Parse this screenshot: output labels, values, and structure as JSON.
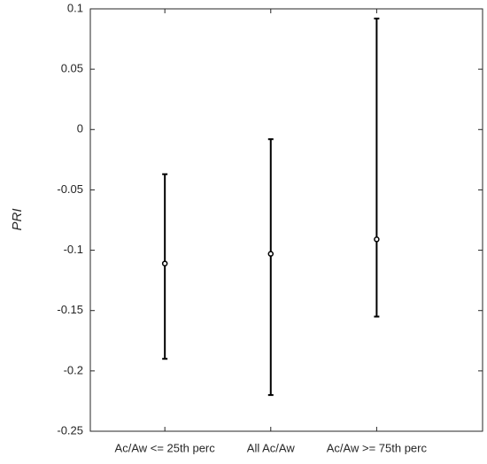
{
  "chart_data": {
    "type": "errorbar",
    "y_label": "PRI",
    "categories": [
      "Ac/Aw <= 25th perc",
      "All  Ac/Aw",
      "Ac/Aw >= 75th perc"
    ],
    "series": [
      {
        "color": "#000000",
        "values": [
          -0.111,
          -0.103,
          -0.091
        ],
        "lower": [
          -0.19,
          -0.22,
          -0.155
        ],
        "upper": [
          -0.037,
          -0.008,
          0.092
        ]
      }
    ],
    "ylim": [
      -0.25,
      0.1
    ],
    "yticks": [
      -0.25,
      -0.2,
      -0.15,
      -0.1,
      -0.05,
      0,
      0.05,
      0.1
    ]
  }
}
